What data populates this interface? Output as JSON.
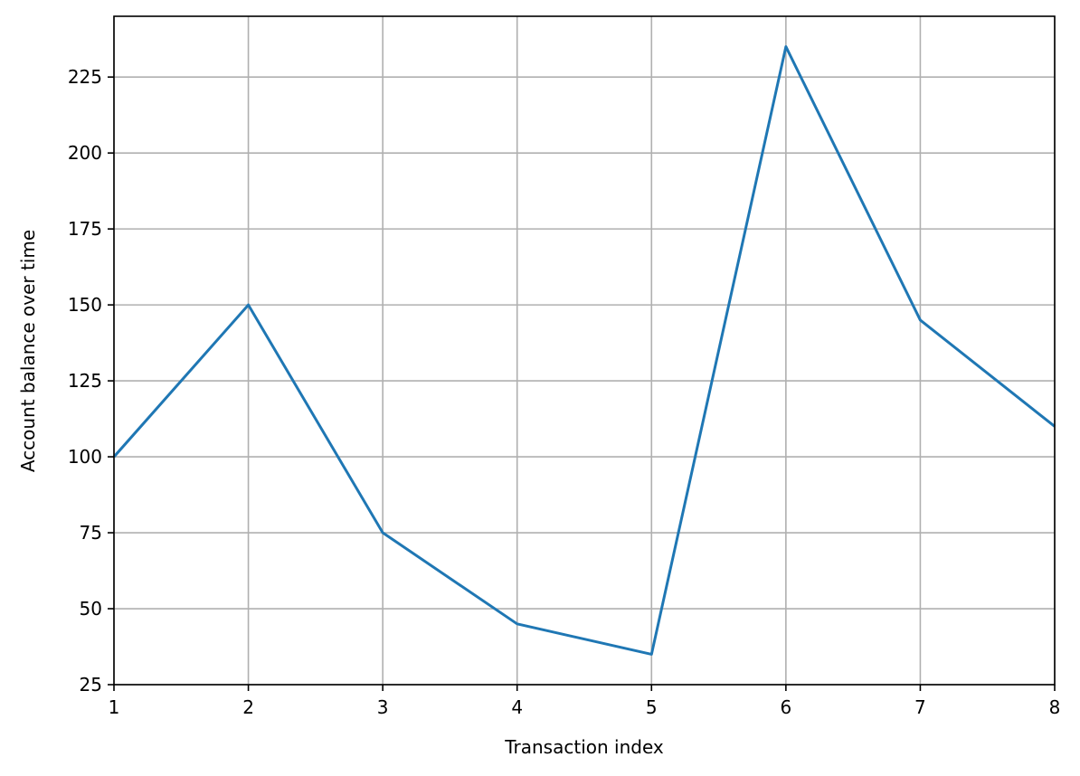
{
  "chart_data": {
    "type": "line",
    "title": "",
    "xlabel": "Transaction index",
    "ylabel": "Account balance over time",
    "x": [
      1,
      2,
      3,
      4,
      5,
      6,
      7,
      8
    ],
    "series": [
      {
        "values": [
          100,
          150,
          75,
          45,
          35,
          235,
          145,
          110
        ],
        "color": "#1f77b4"
      }
    ],
    "xlim": [
      1,
      8
    ],
    "ylim": [
      25,
      245
    ],
    "xticks": [
      1,
      2,
      3,
      4,
      5,
      6,
      7,
      8
    ],
    "yticks": [
      25,
      50,
      75,
      100,
      125,
      150,
      175,
      200,
      225
    ],
    "grid": true,
    "grid_color": "#b0b0b0",
    "axis_color": "#000000",
    "legend": "none"
  }
}
